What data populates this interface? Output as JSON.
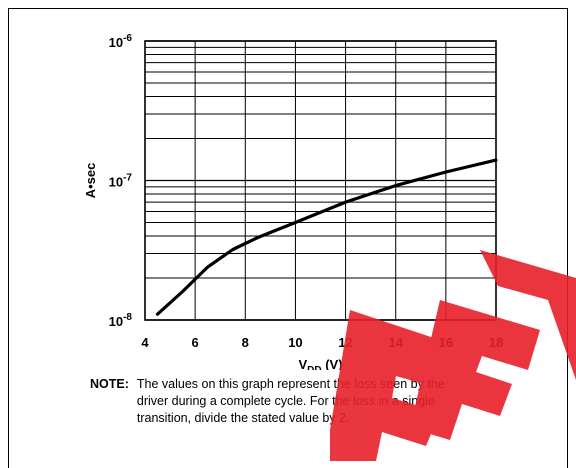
{
  "chart_data": {
    "type": "line",
    "xlabel": "V",
    "xlabel_sub": "DD",
    "xlabel_unit": "(V)",
    "ylabel": "A•sec",
    "xlim": [
      4,
      18
    ],
    "ylim": [
      1e-08,
      1e-06
    ],
    "y_scale": "log",
    "grid": true,
    "x_ticks": [
      4,
      6,
      8,
      10,
      12,
      14,
      16,
      18
    ],
    "y_ticks": [
      {
        "base": "10",
        "exp": "-8",
        "value": 1e-08
      },
      {
        "base": "10",
        "exp": "-7",
        "value": 1e-07
      },
      {
        "base": "10",
        "exp": "-6",
        "value": 1e-06
      }
    ],
    "series": [
      {
        "x": [
          4.5,
          5.5,
          6.5,
          7.5,
          8.5,
          10,
          12,
          14,
          16,
          18
        ],
        "y": [
          1.1e-08,
          1.6e-08,
          2.4e-08,
          3.2e-08,
          3.9e-08,
          5e-08,
          7e-08,
          9.2e-08,
          1.15e-07,
          1.4e-07
        ]
      }
    ],
    "line_color": "#000000"
  },
  "note": {
    "label": "NOTE:",
    "text": "The values on this graph represent the loss seen by the driver during a complete cycle. For the loss in a single transition, divide the stated value by 2."
  },
  "watermark": {
    "color": "#e8202a"
  }
}
